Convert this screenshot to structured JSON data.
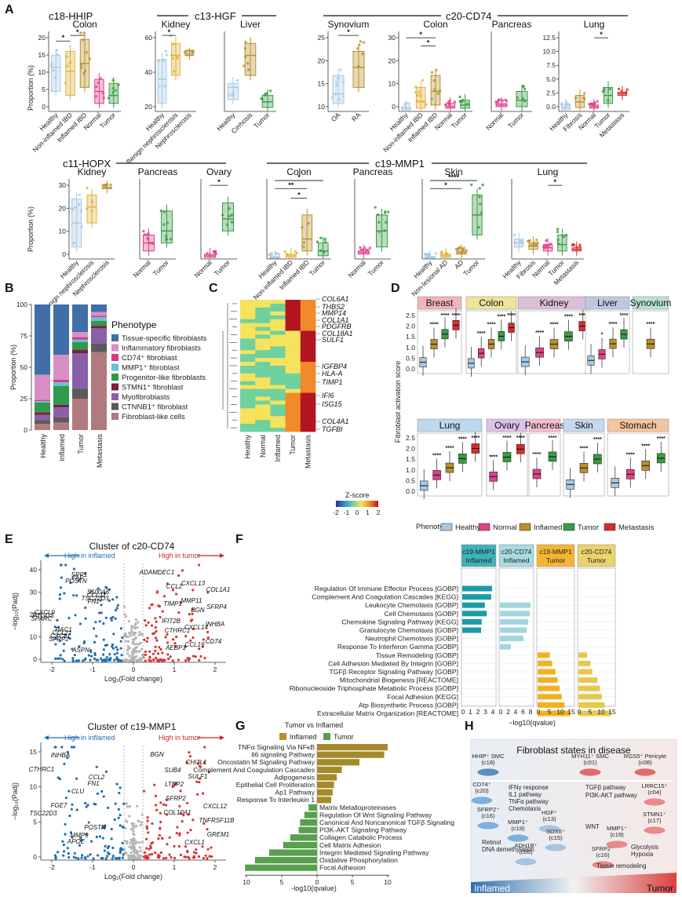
{
  "panels": {
    "A": {
      "label": "A",
      "groups": [
        "c18-HHIP",
        "c13-HGF",
        "c20-CD74",
        "c11-HOPX",
        "c19-MMP1"
      ],
      "ylabel": "Proportion (%)",
      "subplots": [
        {
          "title": "Colon",
          "cats": [
            "Healthy",
            "Non-inflamed IBD",
            "Inflamed IBD",
            "Normal",
            "Tumor"
          ],
          "ticks": [
            "0",
            "5",
            "10",
            "15",
            "20"
          ]
        },
        {
          "title": "Kidney",
          "cats": [
            "Healthy",
            "Benign nephrosclerosis",
            "Nephrosclerosis"
          ],
          "ticks": [
            "20",
            "40",
            "60"
          ]
        },
        {
          "title": "Liver",
          "cats": [
            "Healthy",
            "Cirrhosis",
            "Tumor"
          ],
          "ticks": []
        },
        {
          "title": "Synovium",
          "cats": [
            "OA",
            "RA"
          ],
          "ticks": [
            "10",
            "15",
            "20",
            "25"
          ]
        },
        {
          "title": "Colon",
          "cats": [
            "Healthy",
            "Non-inflamed IBD",
            "Inflamed IBD",
            "Normal",
            "Tumor"
          ],
          "ticks": [
            "0",
            "10",
            "20",
            "30"
          ]
        },
        {
          "title": "Pancreas",
          "cats": [
            "Normal",
            "Tumor"
          ],
          "ticks": []
        },
        {
          "title": "Lung",
          "cats": [
            "Healthy",
            "Fibrosis",
            "Normal",
            "Tumor",
            "Metastasis"
          ],
          "ticks": [
            "0.0",
            "2.5",
            "5.0",
            "7.5",
            "10.0",
            "12.5"
          ]
        },
        {
          "title": "Kidney",
          "cats": [
            "Healthy",
            "Benign nephrosclerosis",
            "Nephrosclerosis"
          ],
          "ticks": [
            "0",
            "10",
            "20",
            "30"
          ]
        },
        {
          "title": "Pancreas",
          "cats": [
            "Normal",
            "Tumor"
          ],
          "ticks": []
        },
        {
          "title": "Ovary",
          "cats": [
            "Normal",
            "Tumor"
          ],
          "ticks": []
        },
        {
          "title": "Colon",
          "cats": [
            "Healthy",
            "Non-inflamed IBD",
            "Inflamed IBD",
            "Tumor"
          ],
          "ticks": []
        },
        {
          "title": "Pancreas",
          "cats": [
            "Normal",
            "Tumor"
          ],
          "ticks": []
        },
        {
          "title": "Skin",
          "cats": [
            "Healthy",
            "Non-lesional AD",
            "AD",
            "Tumor"
          ],
          "ticks": []
        },
        {
          "title": "Lung",
          "cats": [
            "Healthy",
            "Fibrosis",
            "Normal",
            "Tumor",
            "Metastasis"
          ],
          "ticks": []
        }
      ]
    },
    "B": {
      "label": "B",
      "ylabel": "Proportion (%)",
      "legend_title": "Phenotype",
      "ticks": [
        "0",
        "25",
        "50",
        "75",
        "100"
      ],
      "legend": [
        "Tissue-specific fibroblasts",
        "Inflammatory fibroblasts",
        "CD74⁺ fibroblast",
        "MMP1⁺ fibroblast",
        "Progenitor-like fibroblasts",
        "STMN1⁺ fibroblast",
        "Myofibroblasts",
        "CTNNB1⁺ fibroblast",
        "Fibroblast-like cells"
      ]
    },
    "C": {
      "label": "C",
      "genes": [
        "COL6A1",
        "THBS2",
        "MMP14",
        "COL1A1",
        "PDGFRB",
        "COL18A1",
        "SULF1",
        "IGFBP4",
        "HLA-A",
        "TIMP1",
        "IFI6",
        "ISG15",
        "COL4A1",
        "TGFBI"
      ],
      "cols": [
        "Healthy",
        "Normal",
        "Inflamed",
        "Tumor",
        "Metastasis"
      ],
      "zscore_label": "Z-score",
      "zscore_ticks": [
        "-2",
        "-1",
        "0",
        "1",
        "2"
      ]
    },
    "D": {
      "label": "D",
      "ylabel": "Fibroblast activation score",
      "ticks": [
        "0.0",
        "0.5",
        "1.0",
        "1.5",
        "2.0",
        "2.5"
      ],
      "tissues": [
        "Breast",
        "Colon",
        "Kidney",
        "Liver",
        "Synovium",
        "Lung",
        "Ovary",
        "Pancreas",
        "Skin",
        "Stomach"
      ],
      "legend_title": "Phenotype",
      "legend": [
        "Healthy",
        "Normal",
        "Inflamed",
        "Tumor",
        "Metastasis"
      ],
      "star_short": "*",
      "star_long": "****"
    },
    "E": {
      "label": "E",
      "top_title": "Cluster of c20-CD74",
      "bottom_title": "Cluster of c19-MMP1",
      "left_arrow": "High in inflamed",
      "right_arrow": "High in tumor",
      "xlabel": "Log₂(Fold change)",
      "ylabel": "−log₁₀(Padj)",
      "top_yticks": [
        "0",
        "10",
        "20",
        "30",
        "40"
      ],
      "bot_yticks": [
        "0",
        "5",
        "10",
        "15"
      ],
      "xticks": [
        "-2",
        "-1",
        "0",
        "1",
        "2"
      ],
      "top_genes": [
        "ADAMDEC1",
        "FN1",
        "CTHRC1",
        "POSTN",
        "BGN",
        "SFRP2",
        "COL1A1",
        "SPARC",
        "AEBP1",
        "TSC22D3",
        "CXCL14",
        "FAP",
        "SFRP4",
        "CXCL1",
        "CCL2",
        "PTGDS",
        "CCL19",
        "CCL11",
        "INHBA",
        "SPP1",
        "TIMP1",
        "CCL21",
        "CXCL13",
        "CXCL9",
        "CD74",
        "S100A6",
        "IFIT2B",
        "ASPN",
        "MMP11",
        "RAC1"
      ],
      "bot_genes": [
        "BGN",
        "FN1",
        "COL10A1",
        "APOE",
        "SULF1",
        "FGE7",
        "GREM1",
        "CTHRC1",
        "SFRP2",
        "POSTN",
        "CHI3L1",
        "CLU",
        "TNFRSF11B",
        "INHBA",
        "LTBP2",
        "TSC22D3",
        "CXCL1",
        "CCL2",
        "CXCL12",
        "MMP9",
        "SUB4"
      ]
    },
    "F": {
      "label": "F",
      "columns": [
        [
          "c19-MMP1",
          "Inflamed"
        ],
        [
          "c20-CD74",
          "Inflamed"
        ],
        [
          "c19-MMP1",
          "Tumor"
        ],
        [
          "c20-CD74",
          "Tumor"
        ]
      ],
      "terms": [
        "Regulation Of Immune Effector Process [GOBP]",
        "Complement And Coagulation Cascades [KEGG]",
        "Leukocyte Chemotaxis [GOBP]",
        "Cell Chemotaxis [GOBP]",
        "Chemokine Signaling Pathway [KEGG]",
        "Granulocyte Chemotaxis [GOBP]",
        "Neutrophil Chemotaxis [GOBP]",
        "Response To Interferon Gamma [GOBP]",
        "Tissue Remodeling [GOBP]",
        "Cell Adhesion Mediated By Integrin [GOBP]",
        "TGFβ Receptor Signaling Pathway [GOBP]",
        "Mitochondrial Biogenesis [REACTOME]",
        "Ribonucleoside Triphosphate Metabolic Process [GOBP]",
        "Focal Adhesion [KEGG]",
        "Atp Biosynthetic Process [GOBP]",
        "Extracellular Matrix Organization [REACTOME]"
      ],
      "xlabel": "−log10(qvalue)",
      "xticks_a": [
        "0",
        "1",
        "2",
        "3",
        "4"
      ],
      "xticks_b": [
        "0",
        "2",
        "4",
        "6",
        "8"
      ],
      "xticks_c": [
        "0",
        "5",
        "10",
        "15"
      ]
    },
    "G": {
      "label": "G",
      "title": "Tumor vs Inflamed",
      "legend": [
        "Inflamed",
        "Tumor"
      ],
      "terms": [
        "TNFα Signaling Via NFκB",
        "Il6 signaling Pathway",
        "Oncostatin M Signaling Pathway",
        "Complement And Coagulation Cascades",
        "Adipogenesis",
        "Epithelial Cell Proliferation",
        "Ap1 Pathway",
        "Response To Interleukin 1",
        "Matrix Metalloproteinases",
        "Regulation Of Wnt Signaling Pathway",
        "Canonical And Noncanonical TGFβ Signaling",
        "PI3K-AKT Signaling Pathway",
        "Collagen Catabolic Process",
        "Cell Matrix Adhesion",
        "Integrin Mediated Signaling Pathway",
        "Oxidative Phosphorylation",
        "Focal Adhesion"
      ],
      "xlabel": "-log10(qvalue)",
      "xticks": [
        "10",
        "5",
        "0",
        "5",
        "10"
      ]
    },
    "H": {
      "label": "H",
      "title": "Fibroblast states in disease",
      "inflamed": "Inflamed",
      "tumor": "Tumor",
      "cells": [
        {
          "l1": "HHIP⁺ SMC",
          "l2": "(c18)"
        },
        {
          "l1": "MYH11⁺ SMC",
          "l2": "(c01)"
        },
        {
          "l1": "RGS5⁺ Pericyte",
          "l2": "(c08)"
        },
        {
          "l1": "CD74⁺",
          "l2": "(c20)"
        },
        {
          "l1": "SFRP2⁺",
          "l2": "(c16)"
        },
        {
          "l1": "MMP1⁺",
          "l2": "(c19)"
        },
        {
          "l1": "HGF⁺",
          "l2": "(c13)"
        },
        {
          "l1": "SOX6⁺",
          "l2": "(c15)"
        },
        {
          "l1": "ADH1B⁺",
          "l2": "(c06)"
        },
        {
          "l1": "LRRC15⁺",
          "l2": "(c04)"
        },
        {
          "l1": "STMN1⁺",
          "l2": "(c17)"
        },
        {
          "l1": "MMP1⁺",
          "l2": "(c19)"
        },
        {
          "l1": "SFRP2⁺",
          "l2": "(c16)"
        }
      ],
      "notes": [
        "IFNγ response",
        "IL1 pathway",
        "TNFα pathway",
        "Chemotaxis",
        "TGFβ pathway",
        "PI3K-AKT pathway",
        "WNT",
        "Retinol",
        "DNA demethylation",
        "Glycolysis",
        "Hypoxia",
        "Tissue remodeling"
      ]
    }
  },
  "colors": {
    "healthy": "#a9c9e3",
    "normal": "#e0418a",
    "inflamed": "#b8902d",
    "tumor": "#3a9b45",
    "metastasis": "#d62c2c",
    "nonInflamed": "#e0b33b",
    "teal": "#1b9aa7",
    "lightblue": "#a4d5df",
    "orange": "#f0b124",
    "gold": "#e8c84a",
    "olive": "#a58a2a",
    "green": "#58a04e",
    "stacks": [
      "#3f6fa6",
      "#d98fc4",
      "#d33a8a",
      "#67c1d3",
      "#2f9a4a",
      "#7b1f45",
      "#8b5fa8",
      "#5a5a5a",
      "#b07a7e"
    ]
  }
}
